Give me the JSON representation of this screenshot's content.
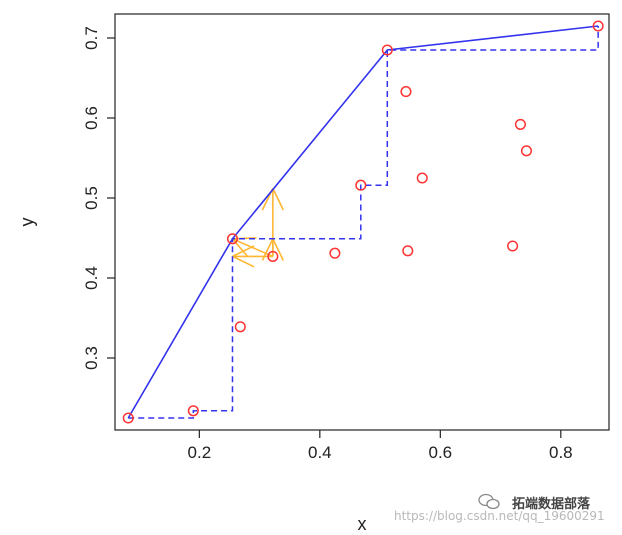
{
  "chart_data": {
    "type": "scatter",
    "title": "",
    "xlabel": "x",
    "ylabel": "y",
    "xlim": [
      0.06,
      0.88
    ],
    "ylim": [
      0.21,
      0.73
    ],
    "xticks": [
      0.2,
      0.4,
      0.6,
      0.8
    ],
    "yticks": [
      0.3,
      0.4,
      0.5,
      0.6,
      0.7
    ],
    "xtick_labels": [
      "0.2",
      "0.4",
      "0.6",
      "0.8"
    ],
    "ytick_labels": [
      "0.3",
      "0.4",
      "0.5",
      "0.6",
      "0.7"
    ],
    "grid": false,
    "legend": "none",
    "points": [
      {
        "x": 0.082,
        "y": 0.225
      },
      {
        "x": 0.19,
        "y": 0.234
      },
      {
        "x": 0.255,
        "y": 0.449
      },
      {
        "x": 0.268,
        "y": 0.339
      },
      {
        "x": 0.322,
        "y": 0.427
      },
      {
        "x": 0.425,
        "y": 0.431
      },
      {
        "x": 0.468,
        "y": 0.516
      },
      {
        "x": 0.512,
        "y": 0.685
      },
      {
        "x": 0.543,
        "y": 0.633
      },
      {
        "x": 0.546,
        "y": 0.434
      },
      {
        "x": 0.57,
        "y": 0.525
      },
      {
        "x": 0.72,
        "y": 0.44
      },
      {
        "x": 0.733,
        "y": 0.592
      },
      {
        "x": 0.743,
        "y": 0.559
      },
      {
        "x": 0.862,
        "y": 0.715
      }
    ],
    "frontier_line": [
      {
        "x": 0.082,
        "y": 0.225
      },
      {
        "x": 0.255,
        "y": 0.449
      },
      {
        "x": 0.512,
        "y": 0.685
      },
      {
        "x": 0.862,
        "y": 0.715
      }
    ],
    "step_line": [
      {
        "x": 0.082,
        "y": 0.225
      },
      {
        "x": 0.19,
        "y": 0.225
      },
      {
        "x": 0.19,
        "y": 0.234
      },
      {
        "x": 0.255,
        "y": 0.234
      },
      {
        "x": 0.255,
        "y": 0.449
      },
      {
        "x": 0.468,
        "y": 0.449
      },
      {
        "x": 0.468,
        "y": 0.516
      },
      {
        "x": 0.512,
        "y": 0.516
      },
      {
        "x": 0.512,
        "y": 0.685
      },
      {
        "x": 0.862,
        "y": 0.685
      },
      {
        "x": 0.862,
        "y": 0.715
      }
    ],
    "arrows": {
      "origin": {
        "x": 0.322,
        "y": 0.427
      },
      "targets": [
        {
          "x": 0.322,
          "y": 0.512
        },
        {
          "x": 0.322,
          "y": 0.449
        },
        {
          "x": 0.255,
          "y": 0.449
        },
        {
          "x": 0.255,
          "y": 0.427
        }
      ]
    },
    "colors": {
      "points": "#ff3333",
      "frontier": "#3333ee",
      "step": "#3333ee",
      "arrows": "#ffb733",
      "axis": "#222222"
    }
  },
  "watermark": {
    "url_text": "https://blog.csdn.net/qq_19600291",
    "brand": "拓端数据部落",
    "icon": "wechat-icon"
  }
}
